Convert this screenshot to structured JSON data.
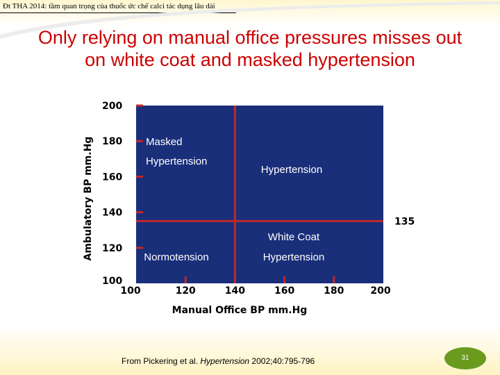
{
  "header": {
    "text": "Đt THA 2014: tầm quan trọng của thuốc ức chế calci tác dụng lâu dài"
  },
  "title": {
    "line1": "Only relying on manual office pressures misses out",
    "line2": "on white coat and masked hypertension"
  },
  "colors": {
    "title": "#cc0000",
    "plot_background": "#1a2f7a",
    "threshold_lines": "#c0282d",
    "badge": "#6a9a1e"
  },
  "chart_data": {
    "type": "quadrant",
    "xlabel": "Manual Office BP mm.Hg",
    "ylabel": "Ambulatory BP mm.Hg",
    "xlim": [
      100,
      200
    ],
    "ylim": [
      100,
      200
    ],
    "x_ticks": [
      "100",
      "120",
      "140",
      "160",
      "180",
      "200"
    ],
    "y_ticks": [
      "100",
      "120",
      "140",
      "160",
      "180",
      "200"
    ],
    "x_threshold": 140,
    "y_threshold": 135,
    "threshold_label": "135",
    "regions": [
      {
        "name": "masked",
        "lines": [
          "Masked",
          "Hypertension"
        ]
      },
      {
        "name": "hypertension",
        "lines": [
          "Hypertension"
        ]
      },
      {
        "name": "normotension",
        "lines": [
          "Normotension"
        ]
      },
      {
        "name": "white-coat",
        "lines": [
          "White Coat",
          "Hypertension"
        ]
      }
    ]
  },
  "citation": {
    "prefix": "From Pickering et al. ",
    "journal": "Hypertension",
    "suffix": " 2002;40:795-796"
  },
  "page_number": "31"
}
